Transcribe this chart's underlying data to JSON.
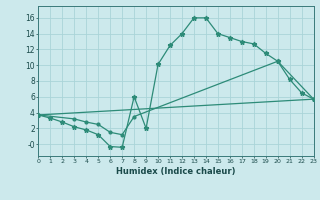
{
  "xlabel": "Humidex (Indice chaleur)",
  "x_values": [
    0,
    1,
    2,
    3,
    4,
    5,
    6,
    7,
    8,
    9,
    10,
    11,
    12,
    13,
    14,
    15,
    16,
    17,
    18,
    19,
    20,
    21,
    22,
    23
  ],
  "line1_y": [
    3.7,
    3.3,
    2.8,
    2.2,
    1.8,
    1.2,
    -0.3,
    -0.4,
    6.0,
    2.0,
    10.1,
    12.5,
    14.0,
    16.0,
    16.0,
    14.0,
    13.5,
    13.0,
    12.7,
    11.5,
    10.5,
    8.2,
    6.5,
    5.7
  ],
  "line2_x": [
    0,
    3,
    4,
    5,
    6,
    7,
    8,
    20,
    23
  ],
  "line2_y": [
    3.7,
    3.2,
    2.8,
    2.5,
    1.5,
    1.2,
    3.5,
    10.5,
    5.7
  ],
  "line3_x": [
    0,
    23
  ],
  "line3_y": [
    3.7,
    5.7
  ],
  "line_color": "#2d8b78",
  "bg_color": "#cce9ec",
  "grid_color": "#aad4d8",
  "ylim": [
    -1.5,
    17.5
  ],
  "xlim": [
    0,
    23
  ],
  "yticks": [
    0,
    2,
    4,
    6,
    8,
    10,
    12,
    14,
    16
  ],
  "ytick_labels": [
    "-0",
    "2",
    "4",
    "6",
    "8",
    "10",
    "12",
    "14",
    "16"
  ],
  "xticks": [
    0,
    1,
    2,
    3,
    4,
    5,
    6,
    7,
    8,
    9,
    10,
    11,
    12,
    13,
    14,
    15,
    16,
    17,
    18,
    19,
    20,
    21,
    22,
    23
  ]
}
